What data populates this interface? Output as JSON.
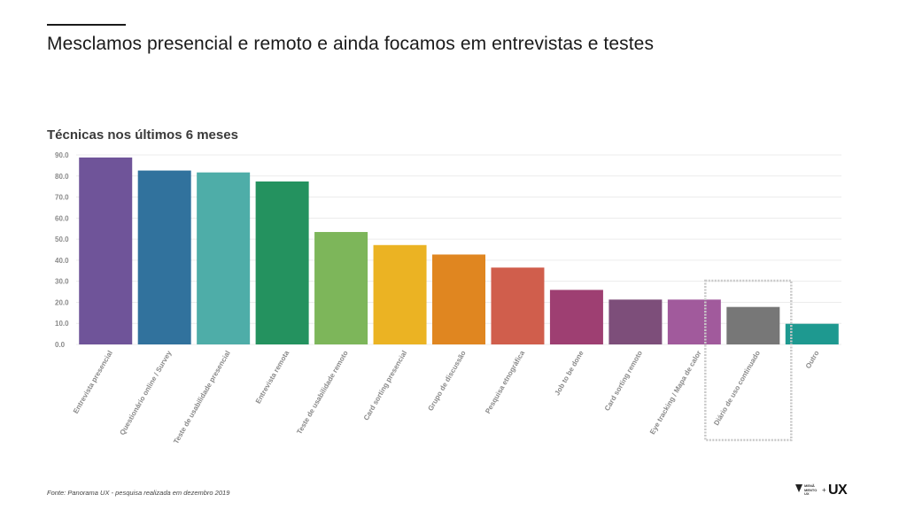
{
  "slide": {
    "headline": "Mesclamos presencial e remoto e ainda focamos em entrevistas e testes",
    "source": "Fonte: Panorama UX - pesquisa realizada em dezembro 2019"
  },
  "logo": {
    "small_text": "MENÃ MENTO UX",
    "plus": "+",
    "ux": "UX"
  },
  "chart_data": {
    "type": "bar",
    "title": "Técnicas nos últimos 6 meses",
    "xlabel": "",
    "ylabel": "",
    "ylim": [
      0,
      90
    ],
    "yticks": [
      "0.0",
      "10.0",
      "20.0",
      "30.0",
      "40.0",
      "50.0",
      "60.0",
      "70.0",
      "80.0",
      "90.0"
    ],
    "grid": true,
    "categories": [
      "Entrevista presencial",
      "Questionário online / Survey",
      "Teste de usabilidade presencial",
      "Entrevista remota",
      "Teste de usabilidade remoto",
      "Card sorting presencial",
      "Grupo de discussão",
      "Pesquisa etnográfica",
      "Job to be done",
      "Card sorting remoto",
      "Eye tracking / Mapa de calor",
      "Diário de uso continuado",
      "Outro"
    ],
    "values": [
      88.8,
      82.6,
      81.7,
      77.4,
      53.4,
      47.2,
      42.7,
      36.5,
      25.9,
      21.3,
      21.3,
      17.8,
      9.8
    ],
    "colors": [
      "#6f5499",
      "#31729d",
      "#4eada8",
      "#24925f",
      "#7db65a",
      "#ebb323",
      "#e08620",
      "#d05e4c",
      "#9e3f72",
      "#7d4e7a",
      "#a15a9c",
      "#777777",
      "#1e9990"
    ],
    "highlighted_category": "Diário de uso continuado"
  }
}
